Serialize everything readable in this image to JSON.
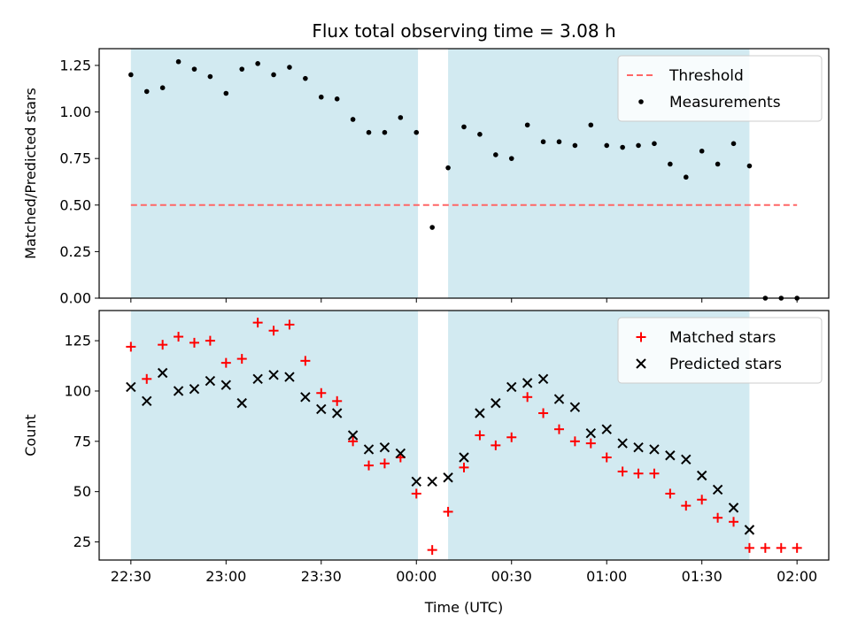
{
  "chart_data": {
    "type": "scatter",
    "title": "Flux total observing time = 3.08 h",
    "xlabel": "Time (UTC)",
    "x_unit": "minutes",
    "x_ticks": [
      {
        "value": 0,
        "label": "22:30"
      },
      {
        "value": 30,
        "label": "23:00"
      },
      {
        "value": 60,
        "label": "23:30"
      },
      {
        "value": 90,
        "label": "00:00"
      },
      {
        "value": 120,
        "label": "00:30"
      },
      {
        "value": 150,
        "label": "01:00"
      },
      {
        "value": 180,
        "label": "01:30"
      },
      {
        "value": 210,
        "label": "02:00"
      }
    ],
    "xlim": [
      -10,
      220
    ],
    "shaded_intervals": [
      [
        0,
        90.5
      ],
      [
        100,
        195
      ]
    ],
    "shade_color": "#add8e6",
    "panels": [
      {
        "id": "ratio",
        "ylabel": "Matched/Predicted stars",
        "ylim": [
          0,
          1.34
        ],
        "yticks": [
          "0.00",
          "0.25",
          "0.50",
          "0.75",
          "1.00",
          "1.25"
        ],
        "threshold": {
          "name": "Threshold",
          "y": 0.5,
          "x_range": [
            0,
            210
          ],
          "color": "#ff6666"
        },
        "series": [
          {
            "name": "Measurements",
            "marker": "dot",
            "color": "#000000",
            "x": [
              0,
              5,
              10,
              15,
              20,
              25,
              30,
              35,
              40,
              45,
              50,
              55,
              60,
              65,
              70,
              75,
              80,
              85,
              90,
              95,
              100,
              105,
              110,
              115,
              120,
              125,
              130,
              135,
              140,
              145,
              150,
              155,
              160,
              165,
              170,
              175,
              180,
              185,
              190,
              195,
              200,
              205,
              210
            ],
            "y": [
              1.2,
              1.11,
              1.13,
              1.27,
              1.23,
              1.19,
              1.1,
              1.23,
              1.26,
              1.2,
              1.24,
              1.18,
              1.08,
              1.07,
              0.96,
              0.89,
              0.89,
              0.97,
              0.89,
              0.38,
              0.7,
              0.92,
              0.88,
              0.77,
              0.75,
              0.93,
              0.84,
              0.84,
              0.82,
              0.93,
              0.82,
              0.81,
              0.82,
              0.83,
              0.72,
              0.65,
              0.79,
              0.72,
              0.83,
              0.71,
              0.0,
              0.0,
              0.0
            ]
          }
        ]
      },
      {
        "id": "count",
        "ylabel": "Count",
        "ylim": [
          16,
          140
        ],
        "yticks": [
          "25",
          "50",
          "75",
          "100",
          "125"
        ],
        "series": [
          {
            "name": "Matched stars",
            "marker": "plus",
            "color": "#ff0000",
            "x": [
              0,
              5,
              10,
              15,
              20,
              25,
              30,
              35,
              40,
              45,
              50,
              55,
              60,
              65,
              70,
              75,
              80,
              85,
              90,
              95,
              100,
              105,
              110,
              115,
              120,
              125,
              130,
              135,
              140,
              145,
              150,
              155,
              160,
              165,
              170,
              175,
              180,
              185,
              190,
              195,
              200,
              205,
              210
            ],
            "y": [
              122,
              106,
              123,
              127,
              124,
              125,
              114,
              116,
              134,
              130,
              133,
              115,
              99,
              95,
              75,
              63,
              64,
              67,
              49,
              21,
              40,
              62,
              78,
              73,
              77,
              97,
              89,
              81,
              75,
              74,
              67,
              60,
              59,
              59,
              49,
              43,
              46,
              37,
              35,
              22,
              22,
              22,
              22
            ]
          },
          {
            "name": "Predicted stars",
            "marker": "x",
            "color": "#000000",
            "x": [
              0,
              5,
              10,
              15,
              20,
              25,
              30,
              35,
              40,
              45,
              50,
              55,
              60,
              65,
              70,
              75,
              80,
              85,
              90,
              95,
              100,
              105,
              110,
              115,
              120,
              125,
              130,
              135,
              140,
              145,
              150,
              155,
              160,
              165,
              170,
              175,
              180,
              185,
              190,
              195
            ],
            "y": [
              102,
              95,
              109,
              100,
              101,
              105,
              103,
              94,
              106,
              108,
              107,
              97,
              91,
              89,
              78,
              71,
              72,
              69,
              55,
              55,
              57,
              67,
              89,
              94,
              102,
              104,
              106,
              96,
              92,
              79,
              81,
              74,
              72,
              71,
              68,
              66,
              58,
              51,
              42,
              31
            ]
          }
        ]
      }
    ]
  }
}
